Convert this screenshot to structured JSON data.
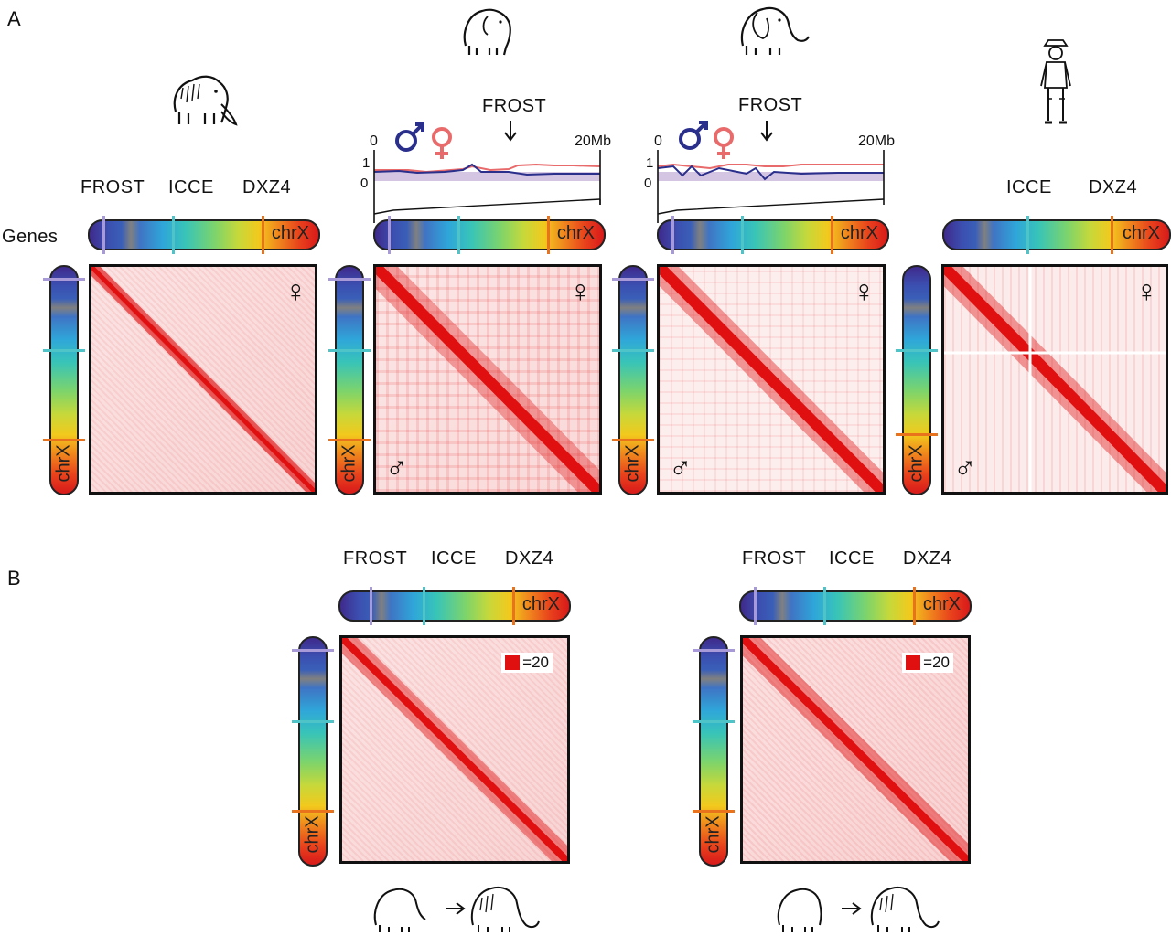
{
  "panels": {
    "a": "A",
    "b": "B"
  },
  "labels": {
    "frost": "FROST",
    "icce": "ICCE",
    "dxz4": "DXZ4",
    "genes": "Genes",
    "chrx": "chrX",
    "scale_start": "0",
    "scale_end": "20Mb",
    "y_one": "1",
    "y_zero": "0",
    "legend": "=20"
  },
  "symbols": {
    "female": "♀",
    "male": "♂"
  },
  "colors": {
    "frost_tick": "#a89ad8",
    "icce_tick": "#4fc4c8",
    "dxz4_tick": "#e8731c",
    "male_line": "#2a2f8c",
    "female_line": "#e86a6a",
    "contact_red": "#e01010"
  },
  "icons": [
    "mammoth-icon",
    "asian-elephant-icon",
    "african-elephant-icon",
    "human-icon",
    "elephant-to-mammoth-icon"
  ]
}
